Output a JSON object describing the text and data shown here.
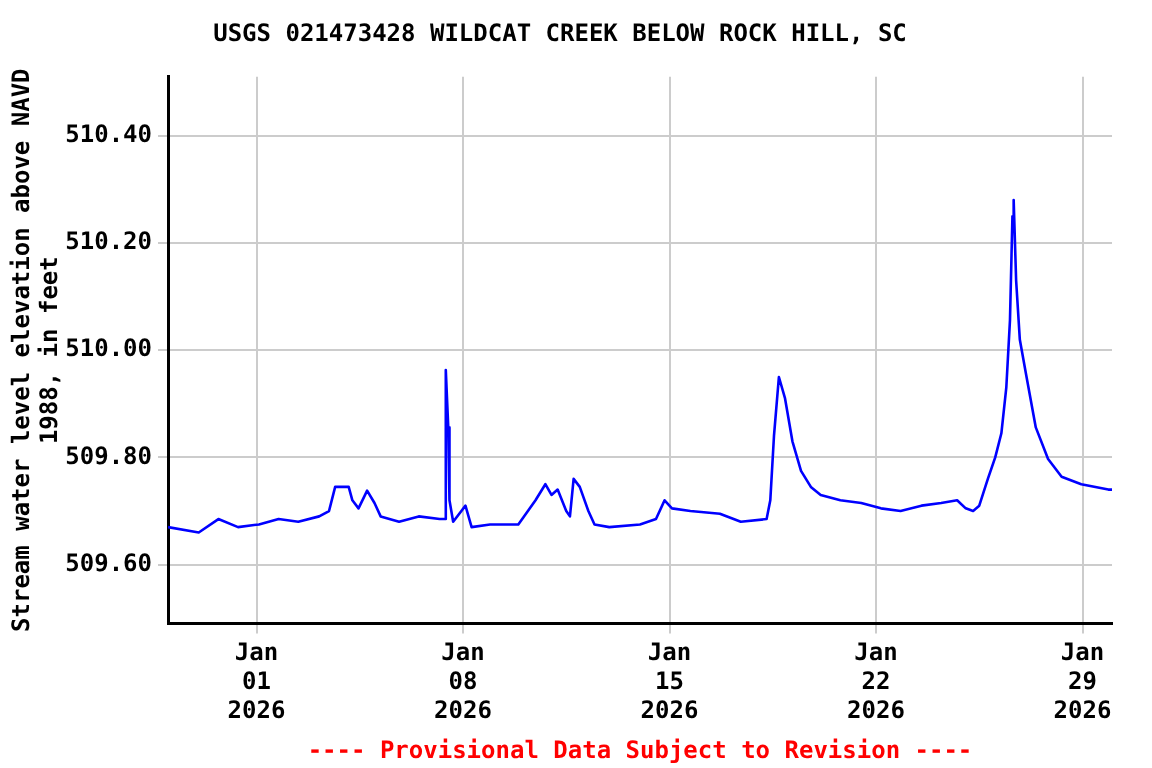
{
  "chart_data": {
    "type": "line",
    "title": "USGS 021473428 WILDCAT CREEK BELOW ROCK HILL, SC",
    "ylabel": "Stream water level elevation above NAVD\n1988, in feet",
    "annotations": [
      "---- Provisional Data Subject to Revision ----"
    ],
    "x": [
      "2025-12-29T00:00",
      "2025-12-30T01:00",
      "2025-12-30T17:00",
      "2025-12-31T09:00",
      "2026-01-01T02:00",
      "2026-01-01T18:00",
      "2026-01-02T10:00",
      "2026-01-03T03:00",
      "2026-01-03T11:00",
      "2026-01-03T16:00",
      "2026-01-04T03:00",
      "2026-01-04T06:00",
      "2026-01-04T11:00",
      "2026-01-04T18:00",
      "2026-01-05T00:00",
      "2026-01-05T05:00",
      "2026-01-05T20:00",
      "2026-01-06T12:00",
      "2026-01-07T05:00",
      "2026-01-07T09:00",
      "2026-01-07T10:00",
      "2026-01-07T12:00",
      "2026-01-07T13:00",
      "2026-01-07T16:00",
      "2026-01-08T02:00",
      "2026-01-08T07:00",
      "2026-01-08T22:00",
      "2026-01-09T21:00",
      "2026-01-10T11:00",
      "2026-01-10T19:00",
      "2026-01-11T00:00",
      "2026-01-11T05:00",
      "2026-01-11T12:00",
      "2026-01-11T15:00",
      "2026-01-11T18:00",
      "2026-01-11T23:00",
      "2026-01-12T06:00",
      "2026-01-12T11:00",
      "2026-01-12T23:00",
      "2026-01-14T00:00",
      "2026-01-14T13:00",
      "2026-01-14T20:00",
      "2026-01-15T02:00",
      "2026-01-15T17:00",
      "2026-01-16T17:00",
      "2026-01-17T10:00",
      "2026-01-18T07:00",
      "2026-01-18T10:00",
      "2026-01-18T13:00",
      "2026-01-18T17:00",
      "2026-01-18T22:00",
      "2026-01-19T04:00",
      "2026-01-19T11:00",
      "2026-01-19T19:00",
      "2026-01-20T03:00",
      "2026-01-20T19:00",
      "2026-01-21T12:00",
      "2026-01-22T04:00",
      "2026-01-22T20:00",
      "2026-01-23T13:00",
      "2026-01-24T05:00",
      "2026-01-24T18:00",
      "2026-01-25T01:00",
      "2026-01-25T07:00",
      "2026-01-25T12:00",
      "2026-01-25T19:00",
      "2026-01-26T01:00",
      "2026-01-26T06:00",
      "2026-01-26T10:00",
      "2026-01-26T13:00",
      "2026-01-26T15:00",
      "2026-01-26T16:00",
      "2026-01-26T18:00",
      "2026-01-26T21:00",
      "2026-01-27T02:00",
      "2026-01-27T10:00",
      "2026-01-27T20:00",
      "2026-01-28T07:00",
      "2026-01-28T23:00",
      "2026-01-29T21:00",
      "2026-01-30T00:00"
    ],
    "series": [
      {
        "color": "#0000ff",
        "values": [
          509.67,
          509.66,
          509.685,
          509.67,
          509.675,
          509.685,
          509.68,
          509.69,
          509.7,
          509.745,
          509.745,
          509.72,
          509.705,
          509.738,
          509.715,
          509.69,
          509.68,
          509.69,
          509.685,
          509.685,
          509.963,
          509.856,
          509.72,
          509.68,
          509.71,
          509.67,
          509.675,
          509.675,
          509.72,
          509.75,
          509.73,
          509.74,
          509.7,
          509.69,
          509.76,
          509.745,
          509.7,
          509.675,
          509.67,
          509.675,
          509.685,
          509.72,
          509.705,
          509.7,
          509.695,
          509.68,
          509.685,
          509.72,
          509.84,
          509.95,
          509.91,
          509.83,
          509.775,
          509.745,
          509.73,
          509.72,
          509.715,
          509.705,
          509.7,
          509.71,
          509.715,
          509.72,
          509.705,
          509.7,
          509.71,
          509.76,
          509.8,
          509.845,
          509.93,
          510.056,
          510.25,
          510.28,
          510.13,
          510.02,
          509.956,
          509.856,
          509.797,
          509.764,
          509.75,
          509.74,
          509.74
        ]
      }
    ],
    "xlim": [
      "2025-12-29T00:00",
      "2026-01-30T00:00"
    ],
    "xticks": [
      {
        "value": "2026-01-01",
        "label": "Jan\n01\n2026"
      },
      {
        "value": "2026-01-08",
        "label": "Jan\n08\n2026"
      },
      {
        "value": "2026-01-15",
        "label": "Jan\n15\n2026"
      },
      {
        "value": "2026-01-22",
        "label": "Jan\n22\n2026"
      },
      {
        "value": "2026-01-29",
        "label": "Jan\n29\n2026"
      }
    ],
    "ylim": [
      509.49,
      510.51
    ],
    "yticks": [
      {
        "value": 509.6,
        "label": "509.60"
      },
      {
        "value": 509.8,
        "label": "509.80"
      },
      {
        "value": 510,
        "label": "510.00"
      },
      {
        "value": 510.2,
        "label": "510.20"
      },
      {
        "value": 510.4,
        "label": "510.40"
      }
    ],
    "grid": true,
    "legend": false,
    "marker": "none",
    "line_style": "solid"
  }
}
